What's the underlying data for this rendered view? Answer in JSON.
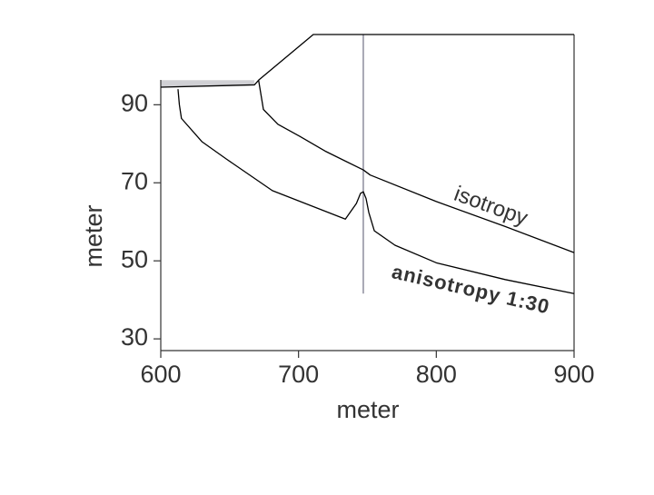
{
  "chart_data": {
    "type": "line",
    "x_label": "meter",
    "y_label": "meter",
    "xlim": [
      600,
      900
    ],
    "ylim": [
      27,
      108
    ],
    "xticks": [
      600,
      700,
      800,
      900
    ],
    "yticks": [
      30,
      50,
      70,
      90
    ],
    "surface": {
      "color": "#000000",
      "x": [
        600,
        668,
        671,
        710.7,
        900
      ],
      "values": [
        94.5,
        95.1,
        96.3,
        108,
        108
      ]
    },
    "shade": {
      "color": "#d0d0d4",
      "x": [
        600,
        668
      ],
      "top": 96.3
    },
    "marker": {
      "color": "#a8a8b4",
      "x": 747,
      "range": [
        41.6,
        108
      ]
    },
    "series": [
      {
        "name": "isotropy",
        "color": "#000000",
        "x": [
          671,
          674.5,
          685,
          701,
          720,
          747,
          752,
          800,
          850,
          900
        ],
        "values": [
          96.3,
          88.8,
          85,
          81.9,
          78,
          73.3,
          72,
          65.2,
          58.8,
          52.1
        ]
      },
      {
        "name": "anisotropy 1:30",
        "color": "#000000",
        "x": [
          612.5,
          613.5,
          615,
          630,
          648,
          681,
          734,
          742,
          745,
          747,
          749,
          751,
          755,
          770,
          800,
          850,
          900
        ],
        "values": [
          94,
          90,
          86.5,
          80.5,
          76,
          68,
          60.7,
          64.7,
          67.3,
          67.7,
          66,
          62.4,
          57.7,
          54,
          49.5,
          45.2,
          41.6
        ]
      }
    ]
  }
}
